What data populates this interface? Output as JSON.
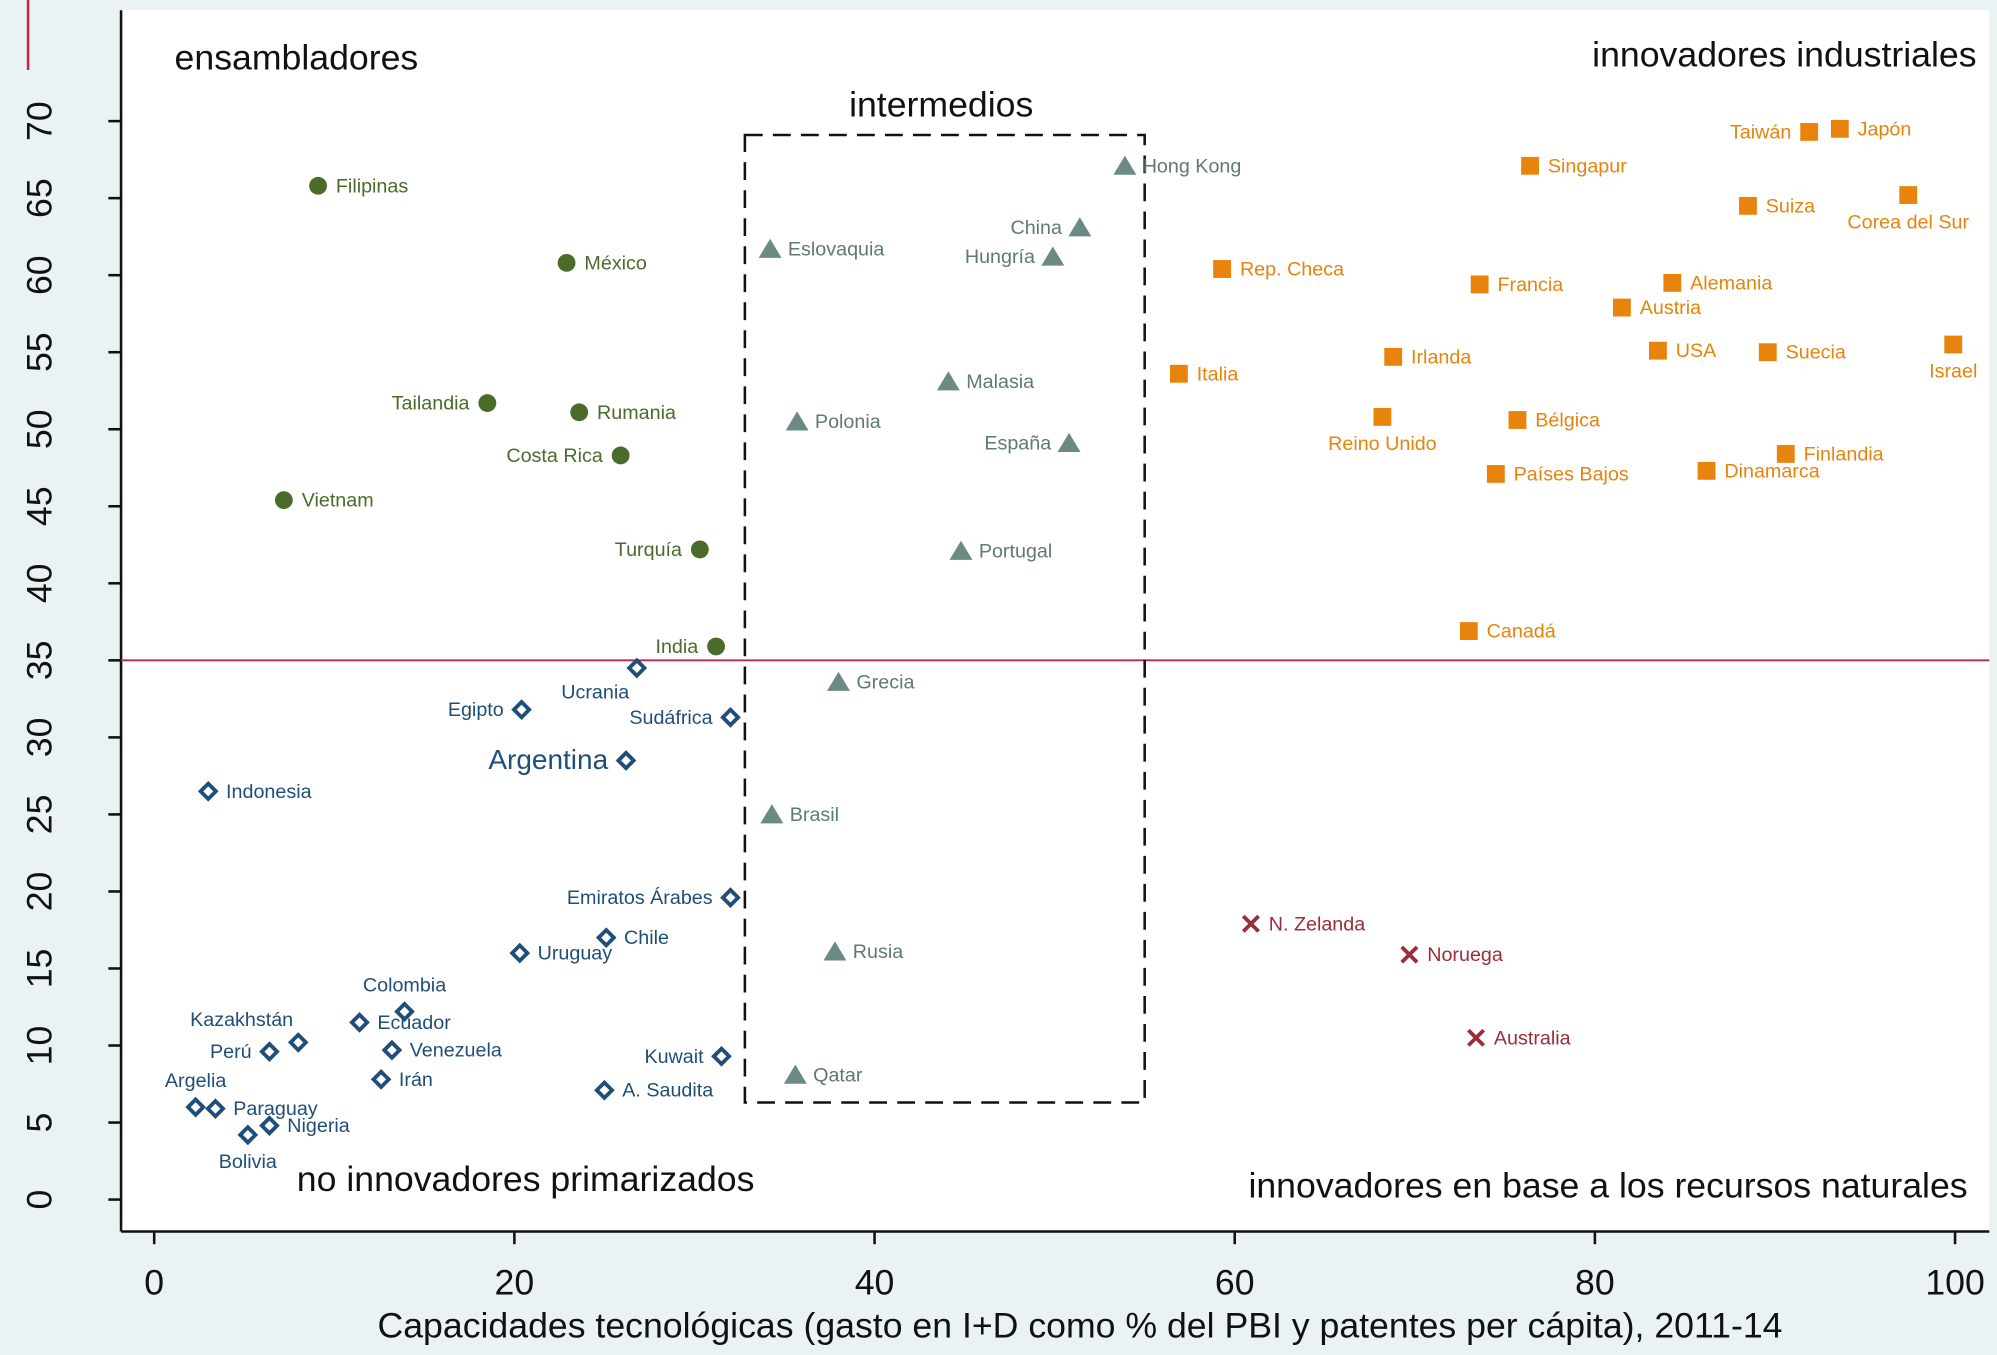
{
  "chart_data": {
    "type": "scatter",
    "x_label": "Capacidades tecnológicas (gasto en I+D como % del PBI y patentes per cápita), 2011-14",
    "xlim": [
      -1.84,
      101.9
    ],
    "ylim": [
      -2.07,
      77.2
    ],
    "xticks": [
      0,
      20,
      40,
      60,
      80,
      100
    ],
    "yticks": [
      0,
      5,
      10,
      15,
      20,
      25,
      30,
      35,
      40,
      45,
      50,
      55,
      60,
      65,
      70
    ],
    "reference_line": {
      "y": 35,
      "color": "#c0264a"
    },
    "box": {
      "xlim": [
        32.8,
        55
      ],
      "ylim": [
        6.3,
        69.1
      ]
    },
    "annotations": [
      "ensambladores",
      "innovadores industriales",
      "intermedios",
      "no innovadores primarizados",
      "innovadores en base a los recursos naturales"
    ],
    "series": [
      {
        "color": "#4a6b2a",
        "marker": "circle",
        "labels": [
          "Filipinas",
          "México",
          "Tailandia",
          "Rumania",
          "Costa Rica",
          "Vietnam",
          "Turquía",
          "India"
        ],
        "x": [
          9.1,
          22.9,
          18.5,
          23.6,
          25.9,
          7.2,
          30.3,
          31.2
        ],
        "values": [
          65.8,
          60.8,
          51.7,
          51.1,
          48.3,
          45.4,
          42.2,
          35.9
        ]
      },
      {
        "color": "#6b8a84",
        "marker": "triangle",
        "labels": [
          "Hong Kong",
          "China",
          "Eslovaquia",
          "Hungría",
          "Malasia",
          "Polonia",
          "España",
          "Portugal",
          "Grecia",
          "Brasil",
          "Rusia",
          "Qatar"
        ],
        "x": [
          53.9,
          51.4,
          34.2,
          49.9,
          44.1,
          35.7,
          50.8,
          44.8,
          38.0,
          34.3,
          37.8,
          35.6
        ],
        "values": [
          67.1,
          63.1,
          61.7,
          61.2,
          53.1,
          50.5,
          49.1,
          42.1,
          33.6,
          25.0,
          16.1,
          8.1
        ]
      },
      {
        "color": "#e8830c",
        "marker": "square",
        "labels": [
          "Taiwán",
          "Japón",
          "Singapur",
          "Suiza",
          "Corea del Sur",
          "Rep. Checa",
          "Francia",
          "Alemania",
          "Austria",
          "USA",
          "Suecia",
          "Irlanda",
          "Israel",
          "Italia",
          "Reino Unido",
          "Bélgica",
          "Finlandia",
          "Países Bajos",
          "Dinamarca",
          "Canadá"
        ],
        "x": [
          91.9,
          93.6,
          76.4,
          88.5,
          97.4,
          59.3,
          73.6,
          84.3,
          81.5,
          83.5,
          89.6,
          68.8,
          99.9,
          56.9,
          68.2,
          75.7,
          90.6,
          74.5,
          86.2,
          73.0
        ],
        "values": [
          69.3,
          69.5,
          67.1,
          64.5,
          65.2,
          60.4,
          59.4,
          59.5,
          57.9,
          55.1,
          55.0,
          54.7,
          55.5,
          53.6,
          50.8,
          50.6,
          48.4,
          47.1,
          47.3,
          36.9
        ]
      },
      {
        "color": "#9b2d3a",
        "marker": "x",
        "labels": [
          "N. Zelanda",
          "Noruega",
          "Australia"
        ],
        "x": [
          60.9,
          69.7,
          73.4
        ],
        "values": [
          17.9,
          15.9,
          10.5
        ]
      },
      {
        "color": "#1f4e79",
        "marker": "diamond",
        "labels": [
          "Ucrania",
          "Egipto",
          "Sudáfrica",
          "Argentina",
          "Indonesia",
          "Emiratos Árabes",
          "Chile",
          "Uruguay",
          "Colombia",
          "Kazakhstán",
          "Ecuador",
          "Venezuela",
          "Perú",
          "Kuwait",
          "Irán",
          "A. Saudita",
          "Argelia",
          "Paraguay",
          "Nigeria",
          "Bolivia"
        ],
        "x": [
          26.8,
          20.4,
          32.0,
          26.2,
          3.0,
          32.0,
          25.1,
          20.3,
          13.9,
          8.0,
          11.4,
          13.2,
          6.4,
          31.5,
          12.6,
          25.0,
          2.3,
          3.4,
          6.4,
          5.2
        ],
        "values": [
          34.5,
          31.8,
          31.3,
          28.5,
          26.5,
          19.6,
          17.0,
          16.0,
          12.2,
          10.2,
          11.5,
          9.7,
          9.6,
          9.3,
          7.8,
          7.1,
          6.0,
          5.9,
          4.8,
          4.2
        ]
      }
    ]
  }
}
